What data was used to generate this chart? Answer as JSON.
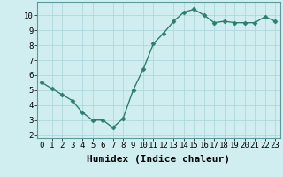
{
  "x": [
    0,
    1,
    2,
    3,
    4,
    5,
    6,
    7,
    8,
    9,
    10,
    11,
    12,
    13,
    14,
    15,
    16,
    17,
    18,
    19,
    20,
    21,
    22,
    23
  ],
  "y": [
    5.5,
    5.1,
    4.7,
    4.3,
    3.5,
    3.0,
    3.0,
    2.5,
    3.1,
    5.0,
    6.4,
    8.1,
    8.8,
    9.6,
    10.2,
    10.4,
    10.0,
    9.5,
    9.6,
    9.5,
    9.5,
    9.5,
    9.9,
    9.6
  ],
  "line_color": "#2e7d6e",
  "marker": "D",
  "marker_size": 2.5,
  "bg_color": "#d0eef0",
  "grid_color": "#a8d4d8",
  "xlabel": "Humidex (Indice chaleur)",
  "xlabel_fontsize": 8,
  "xlim": [
    -0.5,
    23.5
  ],
  "ylim": [
    1.8,
    10.9
  ],
  "yticks": [
    2,
    3,
    4,
    5,
    6,
    7,
    8,
    9,
    10
  ],
  "xticks": [
    0,
    1,
    2,
    3,
    4,
    5,
    6,
    7,
    8,
    9,
    10,
    11,
    12,
    13,
    14,
    15,
    16,
    17,
    18,
    19,
    20,
    21,
    22,
    23
  ],
  "tick_fontsize": 6.5,
  "line_width": 1.0
}
